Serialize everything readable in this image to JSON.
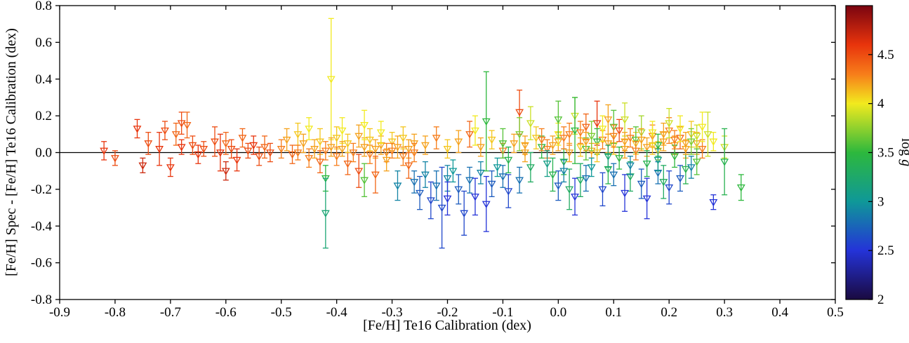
{
  "figure": {
    "background": "#ffffff",
    "axis_color": "#000000"
  },
  "chart_data": {
    "type": "scatter",
    "marker": "open-down-triangle-with-errorbars",
    "title": "",
    "xlabel": "[Fe/H]  Te16  Calibration  (dex)",
    "ylabel": "[Fe/H] Spec - [Fe/H] Te16  Calibration (dex)",
    "xlim": [
      -0.9,
      0.5
    ],
    "ylim": [
      -0.8,
      0.8
    ],
    "zero_line_y": 0,
    "grid": false,
    "x_ticks": [
      "-0.9",
      "-0.8",
      "-0.7",
      "-0.6",
      "-0.5",
      "-0.4",
      "-0.3",
      "-0.2",
      "-0.1",
      "0.0",
      "0.1",
      "0.2",
      "0.3",
      "0.4",
      "0.5"
    ],
    "y_ticks": [
      "-0.8",
      "-0.6",
      "-0.4",
      "-0.2",
      "0.0",
      "0.2",
      "0.4",
      "0.6",
      "0.8"
    ],
    "colorbar": {
      "label_log": "log ",
      "label_g": "g",
      "range": [
        2,
        5
      ],
      "ticks": [
        "2",
        "2.5",
        "3",
        "3.5",
        "4",
        "4.5"
      ],
      "colormap_stops": [
        [
          2.0,
          "#1a0a40"
        ],
        [
          2.5,
          "#2433d8"
        ],
        [
          3.0,
          "#0f9898"
        ],
        [
          3.5,
          "#2db83d"
        ],
        [
          4.0,
          "#f2ea1e"
        ],
        [
          4.3,
          "#f77d1a"
        ],
        [
          4.6,
          "#e8340c"
        ],
        [
          5.0,
          "#7a0410"
        ]
      ]
    },
    "series_note": "points are [x_feh, y_delta_feh, y_err, log_g]",
    "points": [
      [
        -0.82,
        0.01,
        0.05,
        4.6
      ],
      [
        -0.8,
        -0.03,
        0.04,
        4.5
      ],
      [
        -0.76,
        0.13,
        0.05,
        4.6
      ],
      [
        -0.75,
        -0.07,
        0.04,
        4.7
      ],
      [
        -0.74,
        0.05,
        0.06,
        4.5
      ],
      [
        -0.72,
        0.02,
        0.09,
        4.6
      ],
      [
        -0.71,
        0.12,
        0.05,
        4.5
      ],
      [
        -0.7,
        -0.08,
        0.05,
        4.6
      ],
      [
        -0.69,
        0.1,
        0.06,
        4.4
      ],
      [
        -0.68,
        0.16,
        0.06,
        4.5
      ],
      [
        -0.68,
        0.03,
        0.04,
        4.6
      ],
      [
        -0.67,
        0.15,
        0.07,
        4.4
      ],
      [
        -0.66,
        0.04,
        0.05,
        4.5
      ],
      [
        -0.65,
        -0.01,
        0.05,
        4.6
      ],
      [
        -0.64,
        0.02,
        0.04,
        4.5
      ],
      [
        -0.62,
        0.06,
        0.08,
        4.5
      ],
      [
        -0.61,
        0.0,
        0.1,
        4.6
      ],
      [
        -0.6,
        0.05,
        0.06,
        4.4
      ],
      [
        -0.6,
        -0.1,
        0.05,
        4.7
      ],
      [
        -0.59,
        0.02,
        0.05,
        4.5
      ],
      [
        -0.58,
        -0.04,
        0.06,
        4.6
      ],
      [
        -0.57,
        0.08,
        0.05,
        4.4
      ],
      [
        -0.56,
        0.01,
        0.04,
        4.5
      ],
      [
        -0.55,
        0.04,
        0.05,
        4.6
      ],
      [
        -0.54,
        -0.02,
        0.05,
        4.5
      ],
      [
        -0.53,
        0.03,
        0.06,
        4.4
      ],
      [
        -0.52,
        0.0,
        0.05,
        4.5
      ],
      [
        -0.5,
        0.02,
        0.05,
        4.3
      ],
      [
        -0.49,
        0.07,
        0.06,
        4.2
      ],
      [
        -0.48,
        -0.01,
        0.05,
        4.4
      ],
      [
        -0.47,
        0.1,
        0.06,
        4.1
      ],
      [
        -0.47,
        0.0,
        0.04,
        4.3
      ],
      [
        -0.46,
        0.05,
        0.05,
        4.2
      ],
      [
        -0.45,
        0.13,
        0.06,
        4.0
      ],
      [
        -0.45,
        -0.03,
        0.05,
        4.3
      ],
      [
        -0.44,
        0.02,
        0.05,
        4.2
      ],
      [
        -0.43,
        0.06,
        0.07,
        4.1
      ],
      [
        -0.43,
        -0.05,
        0.06,
        4.4
      ],
      [
        -0.42,
        0.01,
        0.05,
        4.3
      ],
      [
        -0.41,
        0.4,
        0.33,
        4.0
      ],
      [
        -0.41,
        0.03,
        0.05,
        4.2
      ],
      [
        -0.4,
        0.08,
        0.06,
        4.1
      ],
      [
        -0.4,
        -0.02,
        0.05,
        4.3
      ],
      [
        -0.39,
        0.12,
        0.07,
        4.0
      ],
      [
        -0.39,
        0.02,
        0.04,
        4.2
      ],
      [
        -0.38,
        -0.06,
        0.06,
        4.4
      ],
      [
        -0.38,
        0.05,
        0.05,
        4.1
      ],
      [
        -0.37,
        0.0,
        0.05,
        4.3
      ],
      [
        -0.36,
        0.09,
        0.06,
        4.2
      ],
      [
        -0.36,
        -0.1,
        0.09,
        4.5
      ],
      [
        -0.35,
        0.03,
        0.05,
        4.2
      ],
      [
        -0.35,
        0.15,
        0.08,
        4.0
      ],
      [
        -0.34,
        -0.01,
        0.05,
        4.3
      ],
      [
        -0.34,
        0.07,
        0.06,
        4.1
      ],
      [
        -0.33,
        0.02,
        0.05,
        4.2
      ],
      [
        -0.33,
        -0.12,
        0.1,
        4.4
      ],
      [
        -0.32,
        0.04,
        0.05,
        4.2
      ],
      [
        -0.32,
        0.11,
        0.06,
        4.0
      ],
      [
        -0.31,
        0.0,
        0.05,
        4.3
      ],
      [
        -0.31,
        -0.04,
        0.06,
        4.2
      ],
      [
        -0.3,
        0.06,
        0.05,
        4.1
      ],
      [
        -0.3,
        0.01,
        0.04,
        4.3
      ],
      [
        -0.29,
        0.03,
        0.06,
        4.2
      ],
      [
        -0.28,
        -0.02,
        0.05,
        4.3
      ],
      [
        -0.28,
        0.08,
        0.06,
        4.1
      ],
      [
        -0.27,
        0.02,
        0.05,
        4.2
      ],
      [
        -0.27,
        -0.07,
        0.07,
        4.4
      ],
      [
        -0.26,
        0.05,
        0.05,
        4.2
      ],
      [
        -0.26,
        0.0,
        0.05,
        4.3
      ],
      [
        -0.42,
        -0.14,
        0.07,
        3.5
      ],
      [
        -0.42,
        -0.33,
        0.19,
        3.2
      ],
      [
        -0.35,
        -0.15,
        0.09,
        3.6
      ],
      [
        -0.29,
        -0.18,
        0.08,
        2.9
      ],
      [
        -0.26,
        -0.16,
        0.06,
        2.8
      ],
      [
        -0.25,
        -0.22,
        0.09,
        2.7
      ],
      [
        -0.24,
        -0.12,
        0.07,
        2.9
      ],
      [
        -0.23,
        -0.26,
        0.1,
        2.6
      ],
      [
        -0.22,
        -0.18,
        0.08,
        2.8
      ],
      [
        -0.21,
        -0.3,
        0.22,
        2.6
      ],
      [
        -0.2,
        -0.14,
        0.07,
        2.9
      ],
      [
        -0.2,
        -0.25,
        0.09,
        2.5
      ],
      [
        -0.19,
        -0.1,
        0.06,
        3.0
      ],
      [
        -0.18,
        -0.2,
        0.08,
        2.7
      ],
      [
        -0.17,
        -0.33,
        0.12,
        2.6
      ],
      [
        -0.16,
        -0.15,
        0.07,
        2.8
      ],
      [
        -0.15,
        -0.24,
        0.1,
        2.5
      ],
      [
        -0.14,
        -0.11,
        0.06,
        2.9
      ],
      [
        -0.13,
        -0.28,
        0.15,
        2.5
      ],
      [
        -0.12,
        -0.17,
        0.07,
        2.7
      ],
      [
        -0.11,
        -0.08,
        0.05,
        3.0
      ],
      [
        -0.1,
        -0.13,
        0.06,
        2.8
      ],
      [
        -0.09,
        -0.21,
        0.09,
        2.6
      ],
      [
        -0.07,
        -0.15,
        0.07,
        2.8
      ],
      [
        -0.24,
        0.04,
        0.05,
        4.2
      ],
      [
        -0.22,
        0.08,
        0.06,
        4.3
      ],
      [
        -0.2,
        0.02,
        0.05,
        4.1
      ],
      [
        -0.18,
        0.06,
        0.06,
        4.2
      ],
      [
        -0.16,
        0.1,
        0.07,
        4.4
      ],
      [
        -0.14,
        0.03,
        0.05,
        4.2
      ],
      [
        -0.12,
        0.07,
        0.05,
        4.1
      ],
      [
        -0.1,
        0.01,
        0.04,
        4.3
      ],
      [
        -0.08,
        0.05,
        0.05,
        4.2
      ],
      [
        -0.07,
        0.22,
        0.12,
        4.5
      ],
      [
        -0.06,
        0.04,
        0.05,
        4.2
      ],
      [
        -0.04,
        0.08,
        0.06,
        4.1
      ],
      [
        -0.02,
        0.02,
        0.05,
        4.3
      ],
      [
        0.0,
        0.06,
        0.05,
        4.2
      ],
      [
        0.02,
        0.1,
        0.06,
        4.3
      ],
      [
        0.04,
        0.03,
        0.05,
        4.1
      ],
      [
        0.05,
        0.14,
        0.07,
        4.4
      ],
      [
        0.06,
        0.01,
        0.04,
        4.2
      ],
      [
        0.07,
        0.16,
        0.12,
        4.6
      ],
      [
        0.08,
        0.07,
        0.05,
        4.3
      ],
      [
        0.09,
        0.18,
        0.08,
        4.2
      ],
      [
        0.1,
        0.04,
        0.05,
        4.1
      ],
      [
        0.11,
        0.12,
        0.06,
        4.5
      ],
      [
        0.12,
        0.02,
        0.05,
        4.2
      ],
      [
        0.13,
        0.08,
        0.05,
        4.3
      ],
      [
        0.14,
        0.05,
        0.06,
        4.1
      ],
      [
        0.16,
        0.03,
        0.05,
        4.2
      ],
      [
        0.17,
        0.09,
        0.06,
        4.3
      ],
      [
        0.18,
        0.01,
        0.05,
        4.1
      ],
      [
        0.19,
        0.06,
        0.05,
        4.2
      ],
      [
        0.2,
        0.12,
        0.07,
        4.3
      ],
      [
        0.21,
        0.04,
        0.05,
        4.2
      ],
      [
        0.22,
        0.08,
        0.06,
        4.4
      ],
      [
        0.23,
        0.02,
        0.05,
        4.2
      ],
      [
        0.24,
        0.1,
        0.07,
        4.1
      ],
      [
        0.25,
        0.05,
        0.06,
        4.2
      ],
      [
        0.26,
        0.02,
        0.05,
        4.3
      ],
      [
        -0.15,
        0.12,
        0.08,
        4.0
      ],
      [
        -0.05,
        0.16,
        0.09,
        3.9
      ],
      [
        0.0,
        0.1,
        0.06,
        4.0
      ],
      [
        0.03,
        0.2,
        0.1,
        3.9
      ],
      [
        0.08,
        0.13,
        0.07,
        4.0
      ],
      [
        0.12,
        0.18,
        0.09,
        3.9
      ],
      [
        0.17,
        0.11,
        0.06,
        4.0
      ],
      [
        0.2,
        0.16,
        0.08,
        3.9
      ],
      [
        0.22,
        0.13,
        0.07,
        4.0
      ],
      [
        0.25,
        0.09,
        0.06,
        3.9
      ],
      [
        0.26,
        0.14,
        0.08,
        4.0
      ],
      [
        0.28,
        0.06,
        0.05,
        4.0
      ],
      [
        0.3,
        0.03,
        0.06,
        3.9
      ],
      [
        0.27,
        0.1,
        0.12,
        3.9
      ],
      [
        -0.13,
        0.17,
        0.27,
        3.5
      ],
      [
        -0.1,
        0.05,
        0.08,
        3.6
      ],
      [
        -0.09,
        -0.04,
        0.07,
        3.4
      ],
      [
        -0.07,
        0.1,
        0.09,
        3.7
      ],
      [
        -0.05,
        -0.08,
        0.08,
        3.3
      ],
      [
        -0.03,
        0.03,
        0.06,
        3.5
      ],
      [
        -0.01,
        -0.12,
        0.09,
        3.4
      ],
      [
        0.0,
        0.18,
        0.1,
        3.6
      ],
      [
        0.01,
        -0.05,
        0.07,
        3.5
      ],
      [
        0.02,
        -0.2,
        0.11,
        3.3
      ],
      [
        0.03,
        0.12,
        0.18,
        3.5
      ],
      [
        0.04,
        -0.15,
        0.09,
        3.3
      ],
      [
        0.05,
        0.02,
        0.06,
        3.6
      ],
      [
        0.07,
        0.06,
        0.07,
        3.5
      ],
      [
        0.09,
        -0.09,
        0.08,
        3.4
      ],
      [
        0.1,
        0.14,
        0.09,
        3.6
      ],
      [
        0.11,
        -0.03,
        0.06,
        3.5
      ],
      [
        0.13,
        -0.13,
        0.08,
        3.3
      ],
      [
        0.14,
        0.07,
        0.07,
        3.6
      ],
      [
        0.16,
        -0.06,
        0.07,
        3.4
      ],
      [
        0.18,
        0.04,
        0.06,
        3.5
      ],
      [
        0.19,
        -0.16,
        0.09,
        3.3
      ],
      [
        0.21,
        -0.02,
        0.06,
        3.5
      ],
      [
        0.23,
        -0.09,
        0.08,
        3.4
      ],
      [
        0.25,
        -0.05,
        0.07,
        3.6
      ],
      [
        0.3,
        -0.05,
        0.18,
        3.4
      ],
      [
        0.33,
        -0.19,
        0.07,
        3.5
      ],
      [
        0.06,
        0.09,
        0.08,
        3.7
      ],
      [
        0.15,
        0.11,
        0.09,
        3.8
      ],
      [
        0.24,
        0.06,
        0.07,
        3.7
      ],
      [
        0.0,
        -0.18,
        0.08,
        2.7
      ],
      [
        0.01,
        -0.1,
        0.06,
        2.9
      ],
      [
        0.03,
        -0.24,
        0.1,
        2.5
      ],
      [
        0.05,
        -0.14,
        0.07,
        2.8
      ],
      [
        0.06,
        -0.08,
        0.05,
        3.0
      ],
      [
        0.08,
        -0.2,
        0.09,
        2.6
      ],
      [
        0.1,
        -0.12,
        0.06,
        2.8
      ],
      [
        0.12,
        -0.22,
        0.1,
        2.5
      ],
      [
        0.13,
        -0.07,
        0.05,
        2.9
      ],
      [
        0.15,
        -0.17,
        0.08,
        2.7
      ],
      [
        0.16,
        -0.25,
        0.11,
        2.5
      ],
      [
        0.18,
        -0.11,
        0.06,
        2.8
      ],
      [
        0.2,
        -0.19,
        0.09,
        2.6
      ],
      [
        0.22,
        -0.14,
        0.07,
        2.7
      ],
      [
        0.24,
        -0.08,
        0.06,
        2.9
      ],
      [
        0.28,
        -0.27,
        0.04,
        2.5
      ],
      [
        -0.06,
        0.0,
        0.05,
        4.2
      ],
      [
        -0.03,
        0.07,
        0.06,
        4.3
      ],
      [
        -0.01,
        0.04,
        0.05,
        4.2
      ],
      [
        0.01,
        0.08,
        0.06,
        4.3
      ],
      [
        0.02,
        0.0,
        0.05,
        4.2
      ],
      [
        0.04,
        0.11,
        0.06,
        4.3
      ],
      [
        0.05,
        0.06,
        0.05,
        4.2
      ],
      [
        0.07,
        0.0,
        0.05,
        4.1
      ],
      [
        0.09,
        0.05,
        0.05,
        4.2
      ],
      [
        0.1,
        0.09,
        0.06,
        4.3
      ],
      [
        0.12,
        0.06,
        0.05,
        4.2
      ],
      [
        0.14,
        0.01,
        0.05,
        4.3
      ],
      [
        0.15,
        0.07,
        0.06,
        4.2
      ],
      [
        0.17,
        0.04,
        0.05,
        4.1
      ],
      [
        0.19,
        0.1,
        0.06,
        4.2
      ],
      [
        0.21,
        0.07,
        0.05,
        4.3
      ],
      [
        0.23,
        0.05,
        0.06,
        4.2
      ],
      [
        0.18,
        -0.04,
        0.06,
        3.1
      ],
      [
        0.09,
        -0.02,
        0.06,
        3.2
      ],
      [
        -0.02,
        -0.06,
        0.07,
        3.1
      ]
    ]
  }
}
